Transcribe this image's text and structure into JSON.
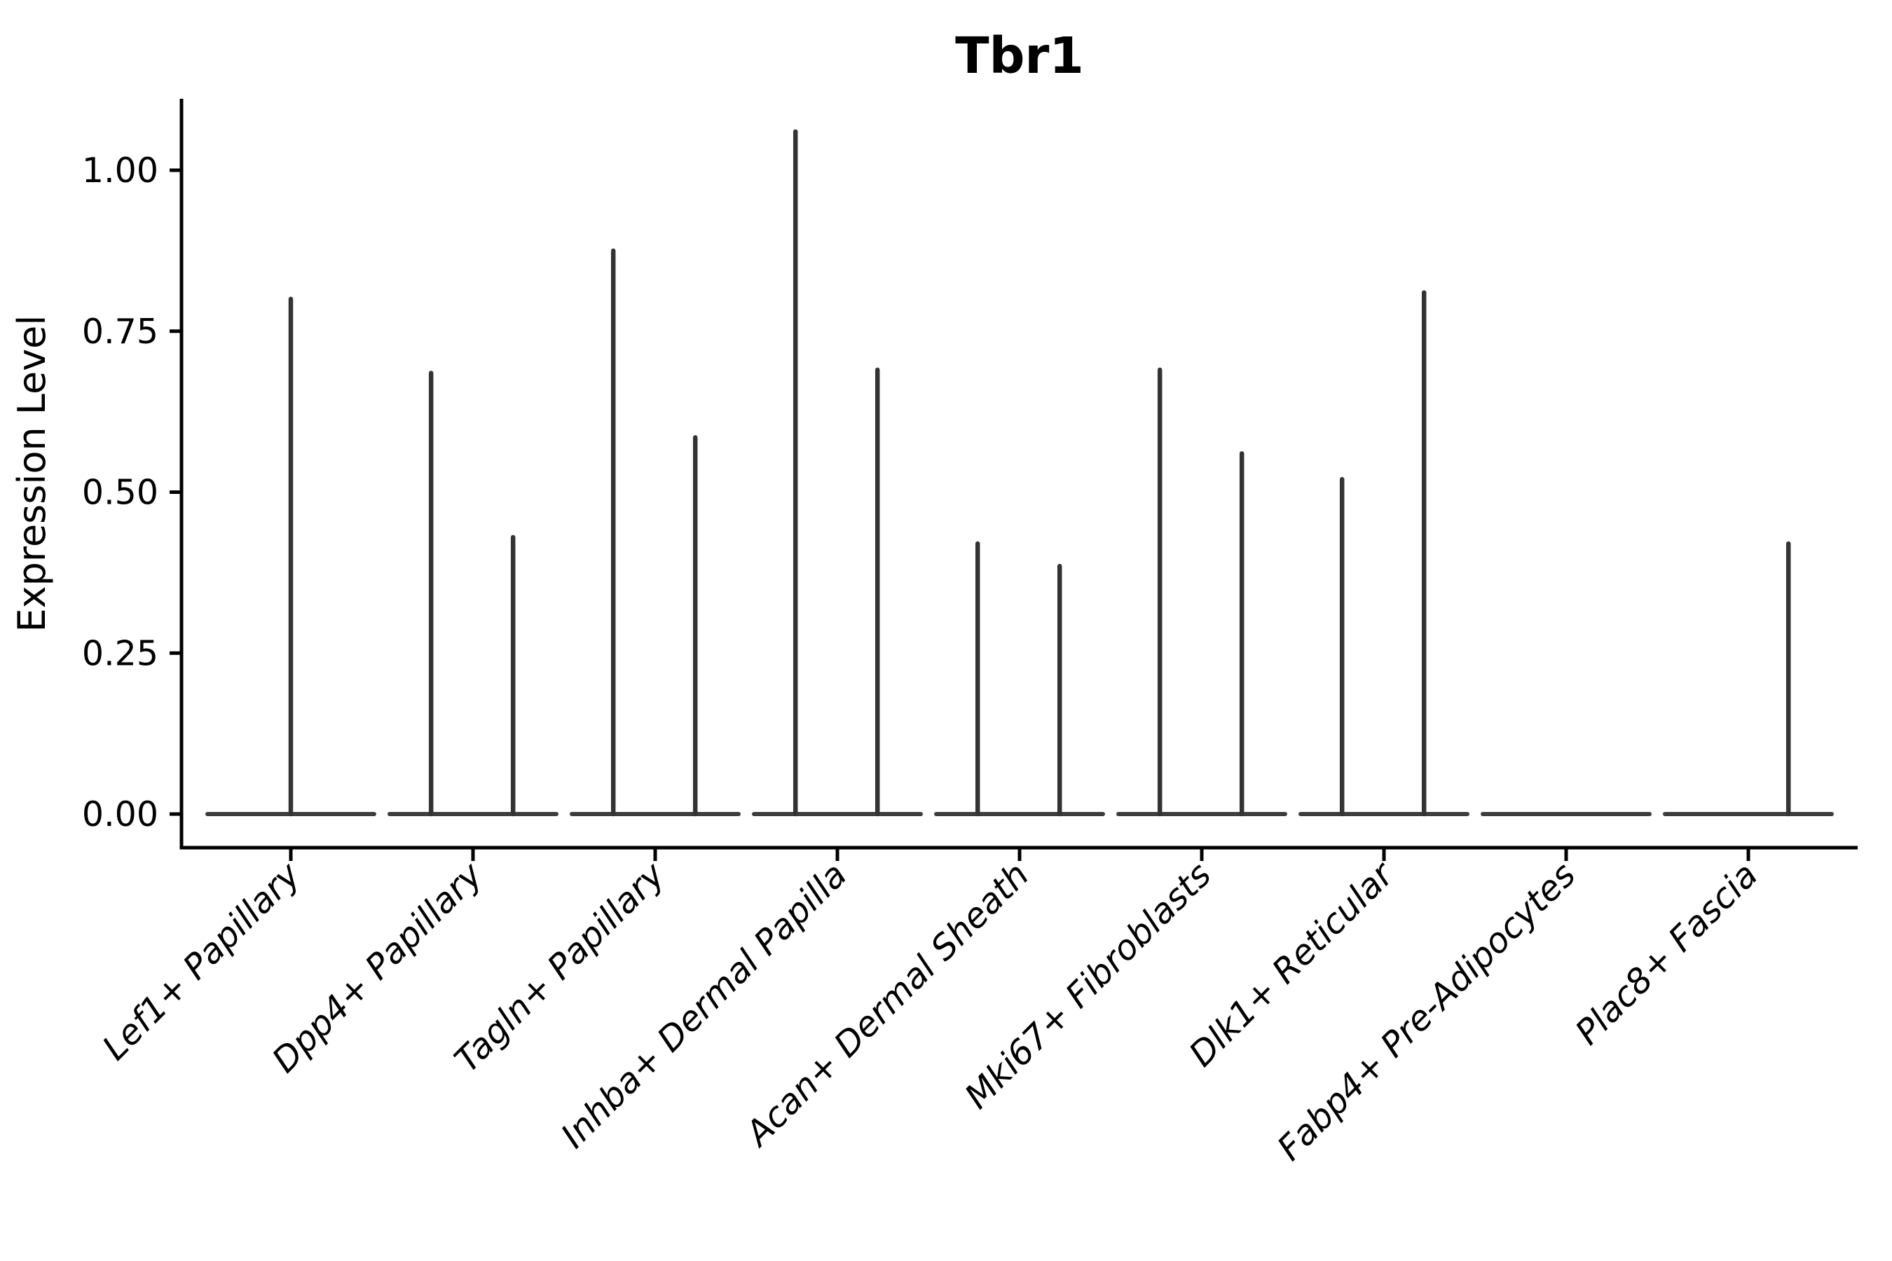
{
  "chart_data": {
    "type": "violin",
    "title": "Tbr1",
    "xlabel": "",
    "ylabel": "Expression Level",
    "categories": [
      "Lef1+ Papillary",
      "Dpp4+ Papillary",
      "Tagln+ Papillary",
      "Inhba+ Dermal Papilla",
      "Acan+ Dermal Sheath",
      "Mki67+ Fibroblasts",
      "Dlk1+ Reticular",
      "Fabp4+ Pre-Adipocytes",
      "Plac8+ Fascia"
    ],
    "yticks": [
      0,
      0.25,
      0.5,
      0.75,
      1.0
    ],
    "ytick_labels": [
      "0.00",
      "0.25",
      "0.50",
      "0.75",
      "1.00"
    ],
    "ylim": [
      -0.053,
      1.111
    ],
    "grid": false,
    "legend": null,
    "style_note": "Violins are collapsed to a flat horizontal density line at expression 0 with a thin vertical spike showing the sparse expressing-cell tail; up to two dodged sub-violins per category (offset is fraction of category slot width); max is the spike top in expression units.",
    "violins": [
      {
        "category": "Lef1+ Papillary",
        "spikes": [
          {
            "offset": 0.0,
            "max": 0.8
          }
        ]
      },
      {
        "category": "Dpp4+ Papillary",
        "spikes": [
          {
            "offset": -0.23,
            "max": 0.685
          },
          {
            "offset": 0.22,
            "max": 0.43
          }
        ]
      },
      {
        "category": "Tagln+ Papillary",
        "spikes": [
          {
            "offset": -0.23,
            "max": 0.875
          },
          {
            "offset": 0.22,
            "max": 0.585
          }
        ]
      },
      {
        "category": "Inhba+ Dermal Papilla",
        "spikes": [
          {
            "offset": -0.23,
            "max": 1.06
          },
          {
            "offset": 0.22,
            "max": 0.69
          }
        ]
      },
      {
        "category": "Acan+ Dermal Sheath",
        "spikes": [
          {
            "offset": -0.23,
            "max": 0.42
          },
          {
            "offset": 0.22,
            "max": 0.385
          }
        ]
      },
      {
        "category": "Mki67+ Fibroblasts",
        "spikes": [
          {
            "offset": -0.23,
            "max": 0.69
          },
          {
            "offset": 0.22,
            "max": 0.56
          }
        ]
      },
      {
        "category": "Dlk1+ Reticular",
        "spikes": [
          {
            "offset": -0.23,
            "max": 0.52
          },
          {
            "offset": 0.22,
            "max": 0.81
          }
        ]
      },
      {
        "category": "Fabp4+ Pre-Adipocytes",
        "spikes": []
      },
      {
        "category": "Plac8+ Fascia",
        "spikes": [
          {
            "offset": 0.22,
            "max": 0.42
          }
        ]
      }
    ],
    "colors": {
      "spike": "#333333",
      "baseline": "#3d3d3d",
      "axis": "#000000",
      "background": "#ffffff"
    }
  }
}
